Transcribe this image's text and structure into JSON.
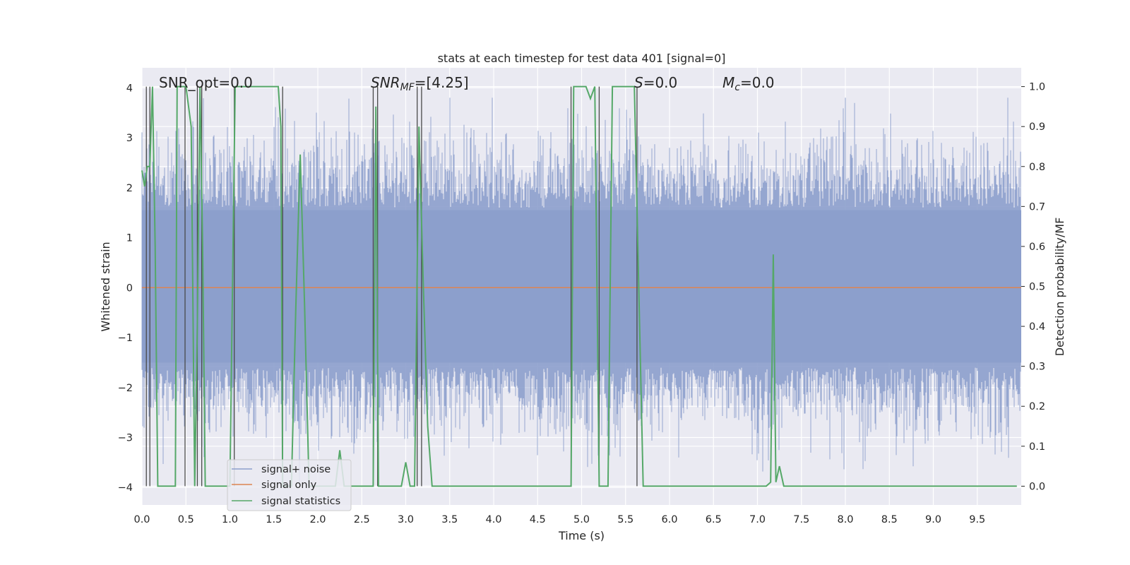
{
  "chart_data": {
    "type": "line",
    "title": "stats at each timestep for test data 401 [signal=0]",
    "xlabel": "Time (s)",
    "ylabel": "Whitened strain",
    "y2label": "Detection probability/MF",
    "xlim": [
      0.0,
      10.0
    ],
    "ylim": [
      -4.35,
      4.4
    ],
    "y2lim": [
      -0.047,
      1.047
    ],
    "grid": true,
    "legend_position": "lower-left",
    "x_ticks": [
      "0.0",
      "0.5",
      "1.0",
      "1.5",
      "2.0",
      "2.5",
      "3.0",
      "3.5",
      "4.0",
      "4.5",
      "5.0",
      "5.5",
      "6.0",
      "6.5",
      "7.0",
      "7.5",
      "8.0",
      "8.5",
      "9.0",
      "9.5"
    ],
    "y_ticks": [
      "4",
      "3",
      "2",
      "1",
      "0",
      "−1",
      "−2",
      "−3",
      "−4"
    ],
    "y2_ticks": [
      "1.0",
      "0.9",
      "0.8",
      "0.7",
      "0.6",
      "0.5",
      "0.4",
      "0.3",
      "0.2",
      "0.1",
      "0.0"
    ],
    "annotations": {
      "snr_opt": "SNR_opt=0.0",
      "snr_mf_prefix": "SNR",
      "snr_mf_sub": "MF",
      "snr_mf_rest": "=[4.25]",
      "s_prefix": "S",
      "s_rest": "=0.0",
      "mc_prefix": "M",
      "mc_sub": "c",
      "mc_rest": "=0.0"
    },
    "series": [
      {
        "name": "signal+ noise",
        "color": "#8c9fcc",
        "amplitude_approx": [
          -3.9,
          3.8
        ]
      },
      {
        "name": "signal only",
        "color": "#dd8452",
        "values_constant": 0.0
      },
      {
        "name": "signal statistics",
        "color": "#55a868",
        "axis": "right",
        "x": [
          0.0,
          0.03,
          0.06,
          0.09,
          0.12,
          0.15,
          0.18,
          0.2,
          0.25,
          0.3,
          0.35,
          0.38,
          0.4,
          0.43,
          0.46,
          0.5,
          0.53,
          0.56,
          0.6,
          0.63,
          0.66,
          0.69,
          0.72,
          0.75,
          0.8,
          0.9,
          1.0,
          1.03,
          1.06,
          1.09,
          1.12,
          1.15,
          1.2,
          1.3,
          1.4,
          1.5,
          1.55,
          1.58,
          1.6,
          1.65,
          1.7,
          1.75,
          1.8,
          1.85,
          1.9,
          1.95,
          2.0,
          2.1,
          2.2,
          2.25,
          2.3,
          2.4,
          2.5,
          2.6,
          2.63,
          2.66,
          2.69,
          2.72,
          2.75,
          2.8,
          2.9,
          2.95,
          3.0,
          3.05,
          3.1,
          3.15,
          3.2,
          3.25,
          3.3,
          3.4,
          3.5,
          4.0,
          4.5,
          4.88,
          4.91,
          4.95,
          5.0,
          5.05,
          5.1,
          5.15,
          5.2,
          5.25,
          5.3,
          5.35,
          5.4,
          5.5,
          5.6,
          5.65,
          5.7,
          5.75,
          5.8,
          6.0,
          6.5,
          7.0,
          7.1,
          7.15,
          7.18,
          7.21,
          7.25,
          7.3,
          7.5,
          8.0,
          9.0,
          9.95
        ],
        "values": [
          0.79,
          0.75,
          0.8,
          0.8,
          1.0,
          0.6,
          0.0,
          0.0,
          0.0,
          0.0,
          0.0,
          0.0,
          1.0,
          1.0,
          1.0,
          1.0,
          0.95,
          0.9,
          0.0,
          0.4,
          1.0,
          0.6,
          0.0,
          0.0,
          0.0,
          0.0,
          0.0,
          0.5,
          1.0,
          1.0,
          1.0,
          1.0,
          1.0,
          1.0,
          1.0,
          1.0,
          1.0,
          0.9,
          0.0,
          0.0,
          0.0,
          0.45,
          0.83,
          0.45,
          0.0,
          0.0,
          0.0,
          0.0,
          0.0,
          0.09,
          0.0,
          0.0,
          0.0,
          0.0,
          0.0,
          0.95,
          0.0,
          0.0,
          0.0,
          0.0,
          0.0,
          0.0,
          0.06,
          0.0,
          0.0,
          0.9,
          0.5,
          0.15,
          0.0,
          0.0,
          0.0,
          0.0,
          0.0,
          0.0,
          1.0,
          1.0,
          1.0,
          1.0,
          0.97,
          1.0,
          0.0,
          0.0,
          0.0,
          1.0,
          1.0,
          1.0,
          1.0,
          0.5,
          0.0,
          0.0,
          0.0,
          0.0,
          0.0,
          0.0,
          0.0,
          0.01,
          0.58,
          0.01,
          0.05,
          0.0,
          0.0,
          0.0,
          0.0,
          0.0
        ]
      }
    ],
    "vertical_lines_x": [
      0.05,
      0.09,
      0.49,
      0.63,
      0.68,
      1.05,
      1.6,
      2.63,
      2.68,
      3.13,
      3.18,
      4.88,
      5.2,
      5.63
    ]
  }
}
